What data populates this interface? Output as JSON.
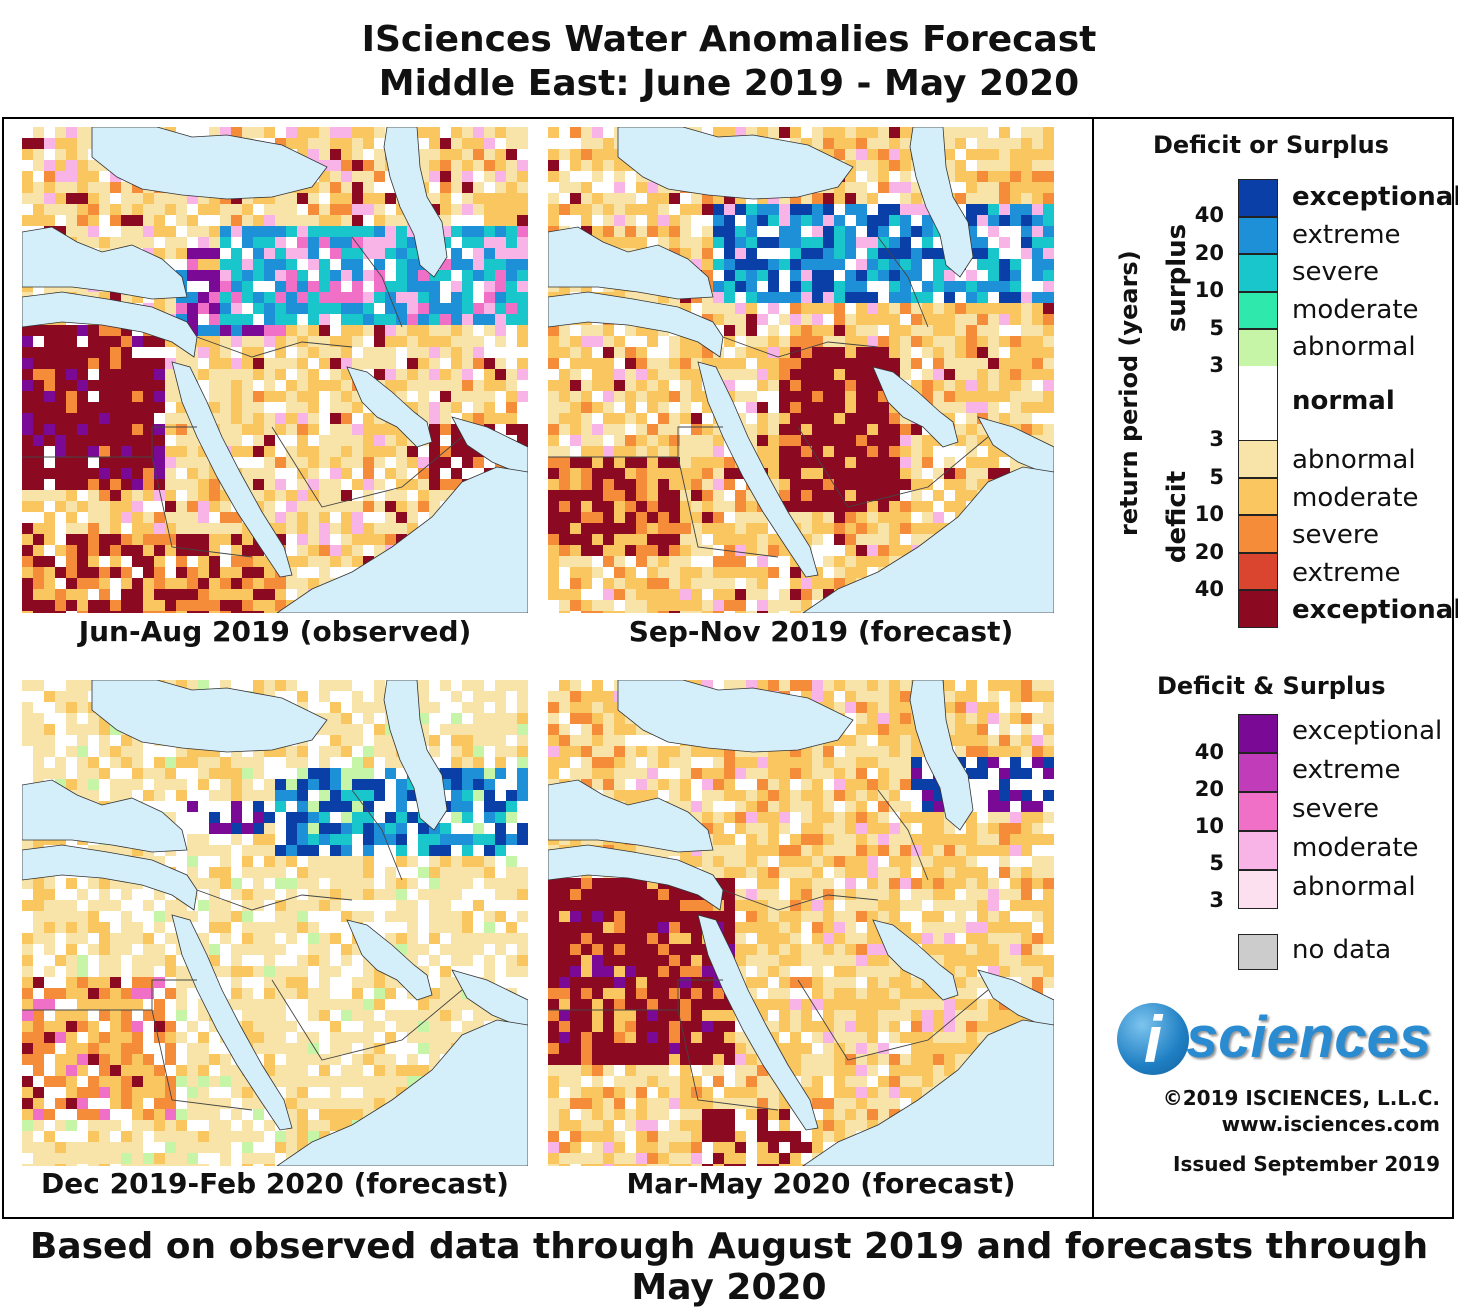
{
  "title": {
    "line1": "ISciences Water Anomalies Forecast",
    "line2": "Middle East: June 2019 - May 2020"
  },
  "maps": [
    {
      "caption": "Jun-Aug 2019 (observed)"
    },
    {
      "caption": "Sep-Nov 2019 (forecast)"
    },
    {
      "caption": "Dec 2019-Feb 2020 (forecast)"
    },
    {
      "caption": "Mar-May 2020 (forecast)"
    }
  ],
  "legend": {
    "section1_title": "Deficit or Surplus",
    "axis_label": "return period (years)",
    "surplus_label": "surplus",
    "deficit_label": "deficit",
    "surplus_items": [
      {
        "label": "exceptional",
        "color": "#0a3fa8"
      },
      {
        "label": "extreme",
        "color": "#1e90d8"
      },
      {
        "label": "severe",
        "color": "#18c6cc"
      },
      {
        "label": "moderate",
        "color": "#2ee8ac"
      },
      {
        "label": "abnormal",
        "color": "#c6f5a8"
      }
    ],
    "normal_label": "normal",
    "deficit_items": [
      {
        "label": "abnormal",
        "color": "#f8e4a8"
      },
      {
        "label": "moderate",
        "color": "#f9c660"
      },
      {
        "label": "severe",
        "color": "#f58c3a"
      },
      {
        "label": "extreme",
        "color": "#d9452e"
      },
      {
        "label": "exceptional",
        "color": "#8b0a22"
      }
    ],
    "surplus_ticks": [
      "40",
      "20",
      "10",
      "5",
      "3"
    ],
    "deficit_ticks": [
      "3",
      "5",
      "10",
      "20",
      "40"
    ],
    "section2_title": "Deficit & Surplus",
    "both_items": [
      {
        "label": "exceptional",
        "color": "#7a0a96"
      },
      {
        "label": "extreme",
        "color": "#c03cb8"
      },
      {
        "label": "severe",
        "color": "#f070c8"
      },
      {
        "label": "moderate",
        "color": "#f8b4e6"
      },
      {
        "label": "abnormal",
        "color": "#fde0f0"
      }
    ],
    "both_ticks": [
      "40",
      "20",
      "10",
      "5",
      "3"
    ],
    "nodata_label": "no data",
    "nodata_color": "#cccccc"
  },
  "logo": {
    "i": "i",
    "text": "sciences"
  },
  "copyright": "©2019 ISCIENCES, L.L.C.",
  "website": "www.isciences.com",
  "issued": "Issued September 2019",
  "footer": "Based on observed data through August 2019 and forecasts through May 2020"
}
